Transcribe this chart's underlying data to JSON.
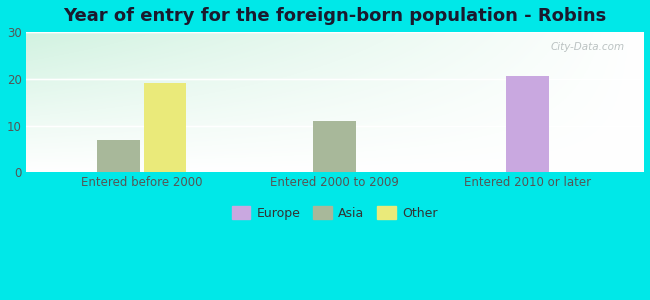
{
  "title": "Year of entry for the foreign-born population - Robins",
  "categories": [
    "Entered before 2000",
    "Entered 2000 to 2009",
    "Entered 2010 or later"
  ],
  "series": {
    "Europe": [
      0,
      0,
      20.5
    ],
    "Asia": [
      7,
      11,
      0
    ],
    "Other": [
      19,
      0,
      0
    ]
  },
  "colors": {
    "Europe": "#c9a8e0",
    "Asia": "#a8b89a",
    "Other": "#eaea7a"
  },
  "ylim": [
    0,
    30
  ],
  "yticks": [
    0,
    10,
    20,
    30
  ],
  "background_color": "#00e8e8",
  "title_fontsize": 13,
  "legend_fontsize": 9,
  "tick_fontsize": 8.5,
  "bar_width": 0.22,
  "watermark": "City-Data.com"
}
